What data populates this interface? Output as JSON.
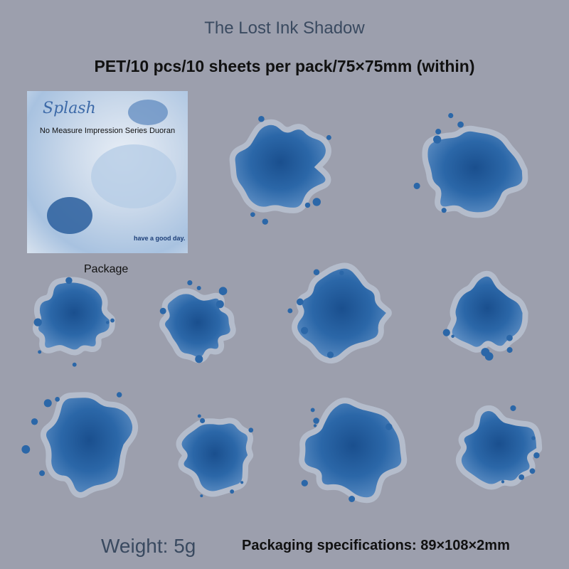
{
  "header": {
    "title": "The Lost Ink Shadow",
    "specs": "PET/10 pcs/10 sheets per pack/75×75mm (within)"
  },
  "package": {
    "brand": "Splash",
    "series": "No Measure Impression Series Duoran",
    "slogan": "have a good day.",
    "label": "Package"
  },
  "footer": {
    "weight": "Weight: 5g",
    "packaging": "Packaging specifications: 89×108×2mm"
  }
}
